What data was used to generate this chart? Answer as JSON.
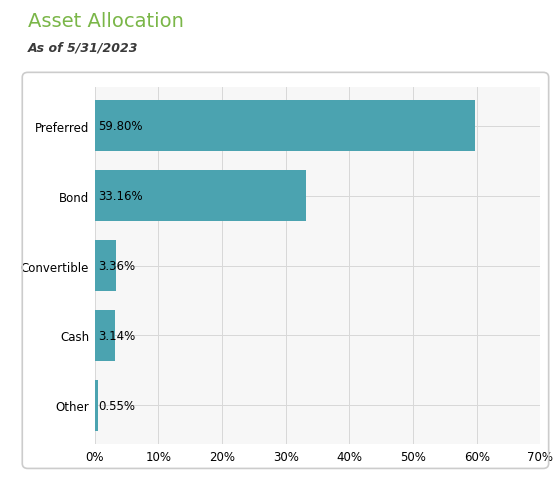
{
  "title": "Asset Allocation",
  "subtitle": "As of 5/31/2023",
  "categories": [
    "Preferred",
    "Bond",
    "Convertible",
    "Cash",
    "Other"
  ],
  "values": [
    59.8,
    33.16,
    3.36,
    3.14,
    0.55
  ],
  "labels": [
    "59.80%",
    "33.16%",
    "3.36%",
    "3.14%",
    "0.55%"
  ],
  "bar_color": "#4BA3B0",
  "title_color": "#7AB648",
  "subtitle_color": "#3a3a3a",
  "background_color": "#ffffff",
  "plot_bg_color": "#f7f7f7",
  "grid_color": "#d8d8d8",
  "border_color": "#cccccc",
  "xlim": [
    0,
    70
  ],
  "xticks": [
    0,
    10,
    20,
    30,
    40,
    50,
    60,
    70
  ],
  "xtick_labels": [
    "0%",
    "10%",
    "20%",
    "30%",
    "40%",
    "50%",
    "60%",
    "70%"
  ],
  "title_fontsize": 14,
  "subtitle_fontsize": 9,
  "label_fontsize": 8.5,
  "tick_fontsize": 8.5,
  "bar_height": 0.72
}
